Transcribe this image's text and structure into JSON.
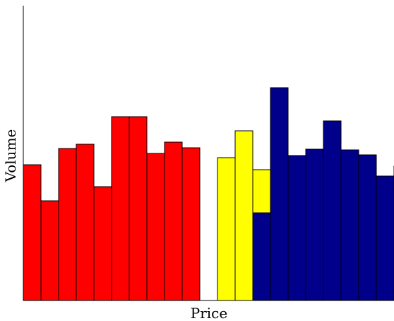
{
  "chart_data": {
    "type": "bar",
    "title": "",
    "xlabel": "Price",
    "ylabel": "Volume",
    "ylim": [
      0,
      415
    ],
    "grid": false,
    "legend": "none",
    "series": [
      {
        "color": "#ff0000",
        "x": [
          1,
          2,
          3,
          4,
          5,
          6,
          7,
          8,
          9,
          10
        ],
        "values": [
          192,
          141,
          215,
          221,
          161,
          260,
          260,
          208,
          224,
          216
        ]
      },
      {
        "color": "#ffff00",
        "x": [
          12,
          13,
          14
        ],
        "values": [
          202,
          240,
          185
        ]
      },
      {
        "color": "#00008b",
        "x": [
          14,
          15,
          16,
          17,
          18,
          19,
          20,
          21,
          22
        ],
        "values": [
          124,
          301,
          205,
          214,
          254,
          213,
          206,
          176,
          190
        ]
      }
    ]
  }
}
